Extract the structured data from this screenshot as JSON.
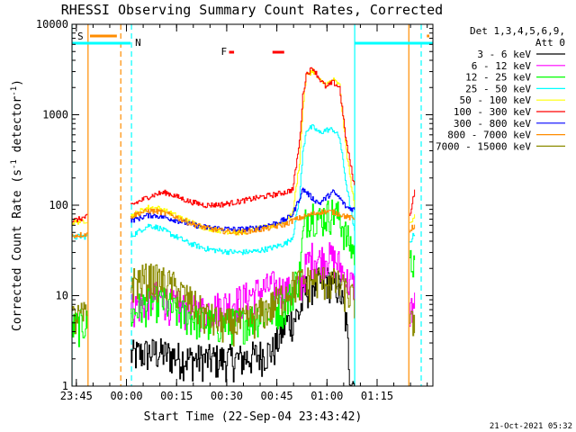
{
  "chart_data": {
    "type": "line",
    "title": "RHESSI Observing Summary Count Rates, Corrected",
    "xlabel": "Start Time (22-Sep-04 23:43:42)",
    "ylabel_main": "Corrected Count Rate (s",
    "ylabel_sup": "-1",
    "ylabel_tail": " detector",
    "ylabel_end": ")",
    "x_unit": "minutes from 23:43:42",
    "xlim": [
      0,
      108
    ],
    "ylim": [
      1,
      10000
    ],
    "yscale": "log",
    "x_ticks": [
      {
        "t": 1.3,
        "label": "23:45"
      },
      {
        "t": 16.3,
        "label": "00:00"
      },
      {
        "t": 31.3,
        "label": "00:15"
      },
      {
        "t": 46.3,
        "label": "00:30"
      },
      {
        "t": 61.3,
        "label": "00:45"
      },
      {
        "t": 76.3,
        "label": "01:00"
      },
      {
        "t": 91.3,
        "label": "01:15"
      }
    ],
    "y_ticks": [
      {
        "v": 1,
        "label": "1"
      },
      {
        "v": 10,
        "label": "10"
      },
      {
        "v": 100,
        "label": "100"
      },
      {
        "v": 1000,
        "label": "1000"
      },
      {
        "v": 10000,
        "label": "10000"
      }
    ],
    "legend_title": [
      "Det 1,3,4,5,6,9,",
      "Att 0"
    ],
    "legend_position": "right",
    "flags": {
      "saa_label": "S",
      "night_label": "N",
      "flare_label": "F",
      "saa_intervals": [
        [
          -2,
          14.5
        ],
        [
          100.8,
          108
        ]
      ],
      "night_intervals": [
        [
          -2,
          17.5
        ],
        [
          84.5,
          108
        ]
      ],
      "flare_intervals": [
        [
          47,
          48.5
        ],
        [
          60,
          63.5
        ]
      ]
    },
    "data_gaps": [
      [
        4.5,
        17.5
      ],
      [
        84.5,
        100.8
      ]
    ],
    "vertical_markers": [
      {
        "t": 0.0,
        "color": "#00ffff",
        "style": "solid"
      },
      {
        "t": 4.8,
        "color": "#ff8c00",
        "style": "solid"
      },
      {
        "t": 14.6,
        "color": "#ff8c00",
        "style": "dashed"
      },
      {
        "t": 17.8,
        "color": "#00ffff",
        "style": "dashed"
      },
      {
        "t": 84.6,
        "color": "#00ffff",
        "style": "solid"
      },
      {
        "t": 100.8,
        "color": "#ff8c00",
        "style": "solid"
      },
      {
        "t": 104.5,
        "color": "#00ffff",
        "style": "dashed"
      }
    ],
    "series": [
      {
        "name": "3 - 6 keV",
        "color": "#000000",
        "points": [
          [
            17.5,
            2.2
          ],
          [
            20,
            2.3
          ],
          [
            25,
            2.4
          ],
          [
            30,
            2.2
          ],
          [
            35,
            2.0
          ],
          [
            40,
            2.0
          ],
          [
            45,
            2.0
          ],
          [
            50,
            2.0
          ],
          [
            55,
            2.2
          ],
          [
            60,
            2.5
          ],
          [
            62,
            3.5
          ],
          [
            64,
            5
          ],
          [
            66,
            5.5
          ],
          [
            68,
            6.5
          ],
          [
            70,
            12
          ],
          [
            72,
            14
          ],
          [
            74,
            14
          ],
          [
            76,
            15
          ],
          [
            78,
            14
          ],
          [
            80,
            12
          ],
          [
            82,
            5
          ],
          [
            83,
            1.5
          ],
          [
            84.5,
            1
          ]
        ]
      },
      {
        "name": "6 - 12 keV",
        "color": "#ff00ff",
        "points": [
          [
            17.5,
            7.5
          ],
          [
            20,
            8
          ],
          [
            22,
            9
          ],
          [
            25,
            10
          ],
          [
            28,
            9
          ],
          [
            30,
            8
          ],
          [
            35,
            7
          ],
          [
            40,
            7
          ],
          [
            45,
            8
          ],
          [
            50,
            9
          ],
          [
            55,
            11
          ],
          [
            60,
            13
          ],
          [
            62,
            12
          ],
          [
            66,
            11
          ],
          [
            68,
            12
          ],
          [
            70,
            22
          ],
          [
            72,
            28
          ],
          [
            74,
            25
          ],
          [
            76,
            28
          ],
          [
            78,
            26
          ],
          [
            80,
            22
          ],
          [
            82,
            15
          ],
          [
            84.5,
            13
          ],
          [
            100.8,
            7
          ],
          [
            102.5,
            8
          ]
        ]
      },
      {
        "name": "12 - 25 keV",
        "color": "#00ff00",
        "points": [
          [
            -2,
            4.5
          ],
          [
            4.5,
            5
          ],
          [
            17.5,
            6
          ],
          [
            20,
            7.5
          ],
          [
            25,
            9
          ],
          [
            28,
            8.5
          ],
          [
            30,
            7
          ],
          [
            35,
            6
          ],
          [
            40,
            5
          ],
          [
            45,
            5
          ],
          [
            50,
            5
          ],
          [
            55,
            6
          ],
          [
            60,
            7
          ],
          [
            64,
            8
          ],
          [
            66,
            12
          ],
          [
            68,
            18
          ],
          [
            69,
            45
          ],
          [
            70,
            75
          ],
          [
            72,
            85
          ],
          [
            74,
            70
          ],
          [
            76,
            80
          ],
          [
            78,
            85
          ],
          [
            80,
            75
          ],
          [
            82,
            45
          ],
          [
            84.5,
            30
          ],
          [
            100.8,
            22
          ],
          [
            102.5,
            30
          ]
        ]
      },
      {
        "name": "25 - 50 keV",
        "color": "#00ffff",
        "points": [
          [
            -2,
            42
          ],
          [
            2,
            45
          ],
          [
            4.5,
            45
          ],
          [
            17.5,
            45
          ],
          [
            20,
            52
          ],
          [
            23,
            60
          ],
          [
            26,
            56
          ],
          [
            30,
            47
          ],
          [
            35,
            38
          ],
          [
            40,
            33
          ],
          [
            45,
            31
          ],
          [
            50,
            30
          ],
          [
            55,
            31
          ],
          [
            60,
            34
          ],
          [
            64,
            38
          ],
          [
            66,
            45
          ],
          [
            68,
            120
          ],
          [
            69,
            380
          ],
          [
            70,
            680
          ],
          [
            72,
            730
          ],
          [
            74,
            630
          ],
          [
            76,
            680
          ],
          [
            78,
            690
          ],
          [
            80,
            560
          ],
          [
            82,
            170
          ],
          [
            84.5,
            50
          ],
          [
            90,
            42
          ],
          [
            95,
            37
          ],
          [
            100.8,
            37
          ],
          [
            102.5,
            50
          ]
        ]
      },
      {
        "name": "50 - 100 keV",
        "color": "#ffff00",
        "points": [
          [
            -2,
            62
          ],
          [
            2,
            66
          ],
          [
            4.5,
            68
          ],
          [
            17.5,
            75
          ],
          [
            20,
            85
          ],
          [
            23,
            95
          ],
          [
            26,
            92
          ],
          [
            30,
            80
          ],
          [
            35,
            66
          ],
          [
            40,
            56
          ],
          [
            45,
            52
          ],
          [
            50,
            50
          ],
          [
            55,
            54
          ],
          [
            60,
            60
          ],
          [
            64,
            68
          ],
          [
            66,
            82
          ],
          [
            68,
            300
          ],
          [
            69,
            1200
          ],
          [
            70,
            2700
          ],
          [
            72,
            3100
          ],
          [
            74,
            2400
          ],
          [
            76,
            2150
          ],
          [
            78,
            2450
          ],
          [
            80,
            2100
          ],
          [
            82,
            400
          ],
          [
            84.5,
            95
          ],
          [
            90,
            72
          ],
          [
            95,
            60
          ],
          [
            100.8,
            60
          ],
          [
            102.5,
            80
          ]
        ]
      },
      {
        "name": "100 - 300 keV",
        "color": "#ff0000",
        "points": [
          [
            -2,
            65
          ],
          [
            2,
            70
          ],
          [
            4.5,
            75
          ],
          [
            17.5,
            100
          ],
          [
            20,
            110
          ],
          [
            23,
            125
          ],
          [
            26,
            135
          ],
          [
            28,
            138
          ],
          [
            30,
            130
          ],
          [
            35,
            110
          ],
          [
            40,
            100
          ],
          [
            45,
            102
          ],
          [
            50,
            110
          ],
          [
            55,
            120
          ],
          [
            60,
            130
          ],
          [
            64,
            140
          ],
          [
            66,
            150
          ],
          [
            68,
            500
          ],
          [
            69,
            1600
          ],
          [
            70,
            2800
          ],
          [
            72,
            3300
          ],
          [
            74,
            2500
          ],
          [
            76,
            2000
          ],
          [
            78,
            2300
          ],
          [
            80,
            2000
          ],
          [
            82,
            500
          ],
          [
            84.5,
            160
          ],
          [
            90,
            100
          ],
          [
            95,
            75
          ],
          [
            100.8,
            70
          ],
          [
            102.5,
            150
          ]
        ]
      },
      {
        "name": "300 - 800 keV",
        "color": "#0000ff",
        "points": [
          [
            17.5,
            68
          ],
          [
            20,
            72
          ],
          [
            23,
            78
          ],
          [
            26,
            76
          ],
          [
            30,
            70
          ],
          [
            35,
            62
          ],
          [
            40,
            57
          ],
          [
            45,
            55
          ],
          [
            50,
            54
          ],
          [
            55,
            56
          ],
          [
            60,
            62
          ],
          [
            64,
            70
          ],
          [
            66,
            80
          ],
          [
            68,
            120
          ],
          [
            69,
            150
          ],
          [
            70,
            140
          ],
          [
            72,
            118
          ],
          [
            74,
            105
          ],
          [
            76,
            122
          ],
          [
            78,
            140
          ],
          [
            80,
            120
          ],
          [
            82,
            95
          ],
          [
            84.5,
            90
          ]
        ]
      },
      {
        "name": "800 - 7000 keV",
        "color": "#ff8c00",
        "points": [
          [
            -2,
            45
          ],
          [
            2,
            47
          ],
          [
            4.5,
            48
          ],
          [
            17.5,
            75
          ],
          [
            20,
            82
          ],
          [
            23,
            87
          ],
          [
            26,
            85
          ],
          [
            30,
            77
          ],
          [
            35,
            64
          ],
          [
            40,
            56
          ],
          [
            45,
            52
          ],
          [
            50,
            50
          ],
          [
            55,
            53
          ],
          [
            60,
            57
          ],
          [
            64,
            62
          ],
          [
            66,
            68
          ],
          [
            68,
            72
          ],
          [
            72,
            80
          ],
          [
            74,
            84
          ],
          [
            76,
            85
          ],
          [
            78,
            84
          ],
          [
            80,
            80
          ],
          [
            82,
            75
          ],
          [
            84.5,
            70
          ],
          [
            90,
            58
          ],
          [
            95,
            52
          ],
          [
            100.8,
            52
          ],
          [
            102.5,
            60
          ]
        ]
      },
      {
        "name": "7000 - 15000 keV",
        "color": "#8b8b00",
        "points": [
          [
            -2,
            5.5
          ],
          [
            4.5,
            6
          ],
          [
            17.5,
            14
          ],
          [
            20,
            15
          ],
          [
            23,
            16
          ],
          [
            26,
            15
          ],
          [
            30,
            13
          ],
          [
            35,
            9
          ],
          [
            40,
            6
          ],
          [
            45,
            5
          ],
          [
            50,
            5
          ],
          [
            55,
            6
          ],
          [
            60,
            8
          ],
          [
            64,
            11
          ],
          [
            66,
            13
          ],
          [
            68,
            14
          ],
          [
            72,
            15
          ],
          [
            74,
            15
          ],
          [
            76,
            15
          ],
          [
            78,
            14
          ],
          [
            80,
            13
          ],
          [
            82,
            11
          ],
          [
            84.5,
            9
          ],
          [
            90,
            5
          ],
          [
            95,
            4
          ],
          [
            100.8,
            4
          ],
          [
            102.5,
            6
          ]
        ]
      }
    ]
  },
  "footer": {
    "timestamp": "21-Oct-2021 05:32"
  }
}
